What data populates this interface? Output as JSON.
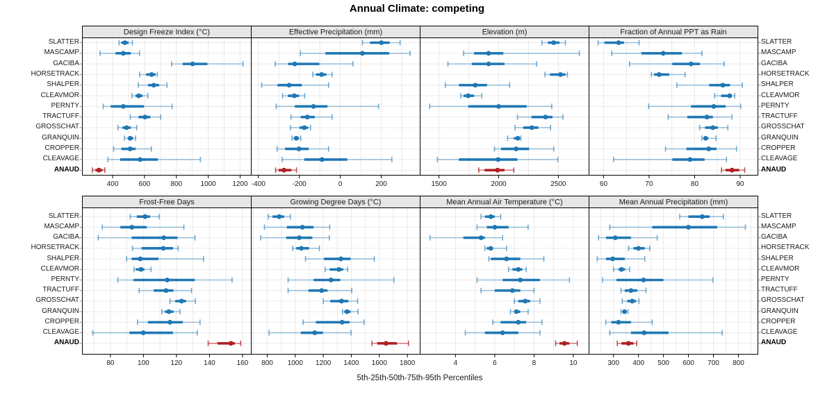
{
  "title": "Annual Climate: competing",
  "footer": "5th-25th-50th-75th-95th Percentiles",
  "sites": [
    "SLATTER",
    "MASCAMP",
    "GACIBA",
    "HORSETRACK",
    "SHALPER",
    "CLEAVMOR",
    "PERNTY",
    "TRACTUFF",
    "GROSSCHAT",
    "GRANQUIN",
    "CROPPER",
    "CLEAVAGE",
    "ANAUD"
  ],
  "highlight_site": "ANAUD",
  "colors": {
    "series_blue": "#1F77B4",
    "series_blue_light": "rgba(31,119,180,0.42)",
    "series_blue_cap": "rgba(31,119,180,0.62)",
    "highlight_red": "#B02126",
    "highlight_red_light": "rgba(176,33,38,0.55)",
    "highlight_red_cap": "rgba(176,33,38,0.78)",
    "strip_bg": "#E6E6E6",
    "panel_border": "#000000",
    "grid": "#BFBFBF",
    "text": "#1a1a1a"
  },
  "chart_data": {
    "type": "dotplot-percentiles",
    "percentiles": [
      5,
      25,
      50,
      75,
      95
    ],
    "layout": "2 rows x 4 columns, shared site category axis, ANAUD highlighted red",
    "panels": [
      {
        "panel_title": "Design Freeze Index (°C)",
        "x_ticks": [
          400,
          600,
          800,
          1000,
          1200
        ],
        "xlim": [
          210,
          1270
        ],
        "minor_step": 100,
        "values": [
          [
            440,
            455,
            477,
            500,
            524
          ],
          [
            321,
            418,
            467,
            514,
            569
          ],
          [
            770,
            840,
            902,
            995,
            1218
          ],
          [
            569,
            610,
            645,
            670,
            681
          ],
          [
            561,
            622,
            658,
            692,
            741
          ],
          [
            521,
            544,
            564,
            588,
            621
          ],
          [
            341,
            388,
            467,
            596,
            773
          ],
          [
            511,
            563,
            603,
            637,
            702
          ],
          [
            433,
            462,
            487,
            514,
            551
          ],
          [
            474,
            495,
            510,
            529,
            544
          ],
          [
            406,
            455,
            510,
            544,
            643
          ],
          [
            370,
            447,
            573,
            684,
            951
          ],
          [
            273,
            292,
            314,
            336,
            351
          ]
        ]
      },
      {
        "panel_title": "Effective Precipitation (mm)",
        "x_ticks": [
          -400,
          -200,
          0,
          200
        ],
        "xlim": [
          -435,
          390
        ],
        "minor_step": 100,
        "values": [
          [
            108,
            145,
            201,
            241,
            292
          ],
          [
            -195,
            -72,
            108,
            239,
            341
          ],
          [
            -318,
            -255,
            -222,
            -102,
            62
          ],
          [
            -134,
            -119,
            -91,
            -68,
            -40
          ],
          [
            -384,
            -307,
            -250,
            -188,
            -57
          ],
          [
            -282,
            -256,
            -225,
            -202,
            -174
          ],
          [
            -313,
            -222,
            -131,
            -63,
            187
          ],
          [
            -241,
            -193,
            -161,
            -125,
            -40
          ],
          [
            -244,
            -199,
            -176,
            -157,
            -145
          ],
          [
            -236,
            -227,
            -215,
            -202,
            -193
          ],
          [
            -309,
            -270,
            -202,
            -154,
            -57
          ],
          [
            -284,
            -176,
            -89,
            34,
            252
          ],
          [
            -316,
            -301,
            -275,
            -239,
            -214
          ]
        ]
      },
      {
        "panel_title": "Elevation (m)",
        "x_ticks": [
          1500,
          2000,
          2500
        ],
        "xlim": [
          1342,
          2757
        ],
        "minor_step": 250,
        "values": [
          [
            2363,
            2412,
            2461,
            2510,
            2559
          ],
          [
            1706,
            1794,
            1916,
            2039,
            2676
          ],
          [
            1575,
            1775,
            1916,
            2049,
            2318
          ],
          [
            2388,
            2430,
            2518,
            2560,
            2576
          ],
          [
            1553,
            1667,
            1804,
            1902,
            2092
          ],
          [
            1682,
            1706,
            1745,
            1794,
            1859
          ],
          [
            1422,
            1745,
            2000,
            2235,
            2445
          ],
          [
            2157,
            2275,
            2392,
            2451,
            2539
          ],
          [
            2137,
            2206,
            2278,
            2333,
            2435
          ],
          [
            2075,
            2127,
            2161,
            2176,
            2186
          ],
          [
            1965,
            2020,
            2147,
            2255,
            2461
          ],
          [
            1486,
            1667,
            1996,
            2157,
            2496
          ],
          [
            1833,
            1882,
            1990,
            2049,
            2127
          ]
        ]
      },
      {
        "panel_title": "Fraction of Annual PPT as Rain",
        "x_ticks": [
          60,
          70,
          80,
          90
        ],
        "xlim": [
          56.8,
          93.9
        ],
        "minor_step": 5,
        "values": [
          [
            58.8,
            60.2,
            63.3,
            64.5,
            67.8
          ],
          [
            61.8,
            68.3,
            73.1,
            77.2,
            81.6
          ],
          [
            65.7,
            75.1,
            79.2,
            81.2,
            86.5
          ],
          [
            70.5,
            71.1,
            72.2,
            74.4,
            77.9
          ],
          [
            76.1,
            83.2,
            86.2,
            87.8,
            90.5
          ],
          [
            84.4,
            85.8,
            87.7,
            88.2,
            88.8
          ],
          [
            69.9,
            79.2,
            84.2,
            86.8,
            90.1
          ],
          [
            74.2,
            78.4,
            82.7,
            84,
            88.2
          ],
          [
            81.1,
            82.3,
            84,
            85.1,
            87.3
          ],
          [
            81.6,
            82,
            82.4,
            83,
            84.7
          ],
          [
            73.6,
            78.2,
            83.1,
            84.8,
            89.2
          ],
          [
            62.2,
            75.1,
            79,
            82.2,
            87
          ],
          [
            85.9,
            86.8,
            88.2,
            89.8,
            91
          ]
        ]
      },
      {
        "panel_title": "Frost-Free Days",
        "x_ticks": [
          80,
          100,
          120,
          140,
          160
        ],
        "xlim": [
          63,
          165.3
        ],
        "minor_step": 10,
        "values": [
          [
            92,
            96,
            101,
            104,
            109.5
          ],
          [
            75,
            86,
            93,
            102,
            124.5
          ],
          [
            72.6,
            92.9,
            112.3,
            120.7,
            131.2
          ],
          [
            93.3,
            98.9,
            112.1,
            117.9,
            121
          ],
          [
            89.8,
            92.9,
            98.1,
            109.1,
            136.4
          ],
          [
            94.3,
            95.4,
            98.5,
            100.6,
            104.6
          ],
          [
            84.5,
            94,
            114.4,
            131.1,
            153.7
          ],
          [
            97.4,
            106.2,
            113.7,
            118.2,
            129.1
          ],
          [
            116.1,
            119.3,
            123.1,
            125.9,
            131.5
          ],
          [
            111.2,
            113,
            115.4,
            118.2,
            122.1
          ],
          [
            96.4,
            102.7,
            116.1,
            123.8,
            134.3
          ],
          [
            69.3,
            91.5,
            99.9,
            117.9,
            132.6
          ],
          [
            139.2,
            144.8,
            153,
            155.4,
            158.9
          ]
        ]
      },
      {
        "panel_title": "Growing Degree Days (°C)",
        "x_ticks": [
          800,
          1000,
          1200,
          1400,
          1600,
          1800
        ],
        "xlim": [
          686,
          1891
        ],
        "minor_step": 100,
        "values": [
          [
            808,
            838,
            886,
            921,
            965
          ],
          [
            780,
            940,
            1051,
            1131,
            1246
          ],
          [
            754,
            936,
            1028,
            1122,
            1243
          ],
          [
            982,
            1007,
            1043,
            1098,
            1172
          ],
          [
            1073,
            1205,
            1326,
            1395,
            1564
          ],
          [
            1213,
            1246,
            1312,
            1342,
            1374
          ],
          [
            949,
            1131,
            1255,
            1321,
            1704
          ],
          [
            949,
            1094,
            1188,
            1230,
            1403
          ],
          [
            1200,
            1250,
            1330,
            1379,
            1445
          ],
          [
            1337,
            1350,
            1370,
            1395,
            1448
          ],
          [
            1056,
            1147,
            1334,
            1387,
            1491
          ],
          [
            813,
            1040,
            1139,
            1197,
            1398
          ],
          [
            1547,
            1585,
            1648,
            1726,
            1808
          ]
        ]
      },
      {
        "panel_title": "Mean Annual Air Temperature (°C)",
        "x_ticks": [
          4,
          6,
          8,
          10
        ],
        "xlim": [
          2.2,
          10.8
        ],
        "minor_step": 1,
        "values": [
          [
            5.3,
            5.5,
            5.8,
            6,
            6.3
          ],
          [
            5.1,
            5.6,
            6,
            6.7,
            7.7
          ],
          [
            2.7,
            4.4,
            5.3,
            5.5,
            6.4
          ],
          [
            5.5,
            5.6,
            5.8,
            5.9,
            6.6
          ],
          [
            5.7,
            5.8,
            6.6,
            7.3,
            8.5
          ],
          [
            6.7,
            6.9,
            7.2,
            7.4,
            7.6
          ],
          [
            5.1,
            6.4,
            7.3,
            8.3,
            9.8
          ],
          [
            5.3,
            6,
            6.9,
            7.3,
            8
          ],
          [
            7,
            7.2,
            7.55,
            7.8,
            8.3
          ],
          [
            6.8,
            7,
            7.1,
            7.3,
            7.7
          ],
          [
            5.9,
            6.3,
            7.2,
            7.6,
            8.4
          ],
          [
            4.5,
            5.5,
            6.4,
            7.2,
            8.3
          ],
          [
            9.1,
            9.3,
            9.55,
            9.8,
            10.2
          ]
        ]
      },
      {
        "panel_title": "Mean Annual Precipitation (mm)",
        "x_ticks": [
          300,
          400,
          500,
          600,
          700,
          800
        ],
        "xlim": [
          202,
          878
        ],
        "minor_step": 50,
        "values": [
          [
            565,
            600,
            655,
            685,
            740
          ],
          [
            285,
            455,
            600,
            715,
            828
          ],
          [
            240,
            270,
            307,
            370,
            475
          ],
          [
            360,
            380,
            400,
            425,
            445
          ],
          [
            235,
            270,
            297,
            345,
            425
          ],
          [
            300,
            320,
            332,
            346,
            365
          ],
          [
            256,
            312,
            420,
            500,
            698
          ],
          [
            330,
            345,
            370,
            395,
            430
          ],
          [
            335,
            355,
            375,
            390,
            402
          ],
          [
            330,
            337,
            344,
            353,
            358
          ],
          [
            269,
            291,
            320,
            370,
            455
          ],
          [
            285,
            370,
            423,
            520,
            735
          ],
          [
            315,
            332,
            360,
            380,
            393
          ]
        ]
      }
    ]
  }
}
